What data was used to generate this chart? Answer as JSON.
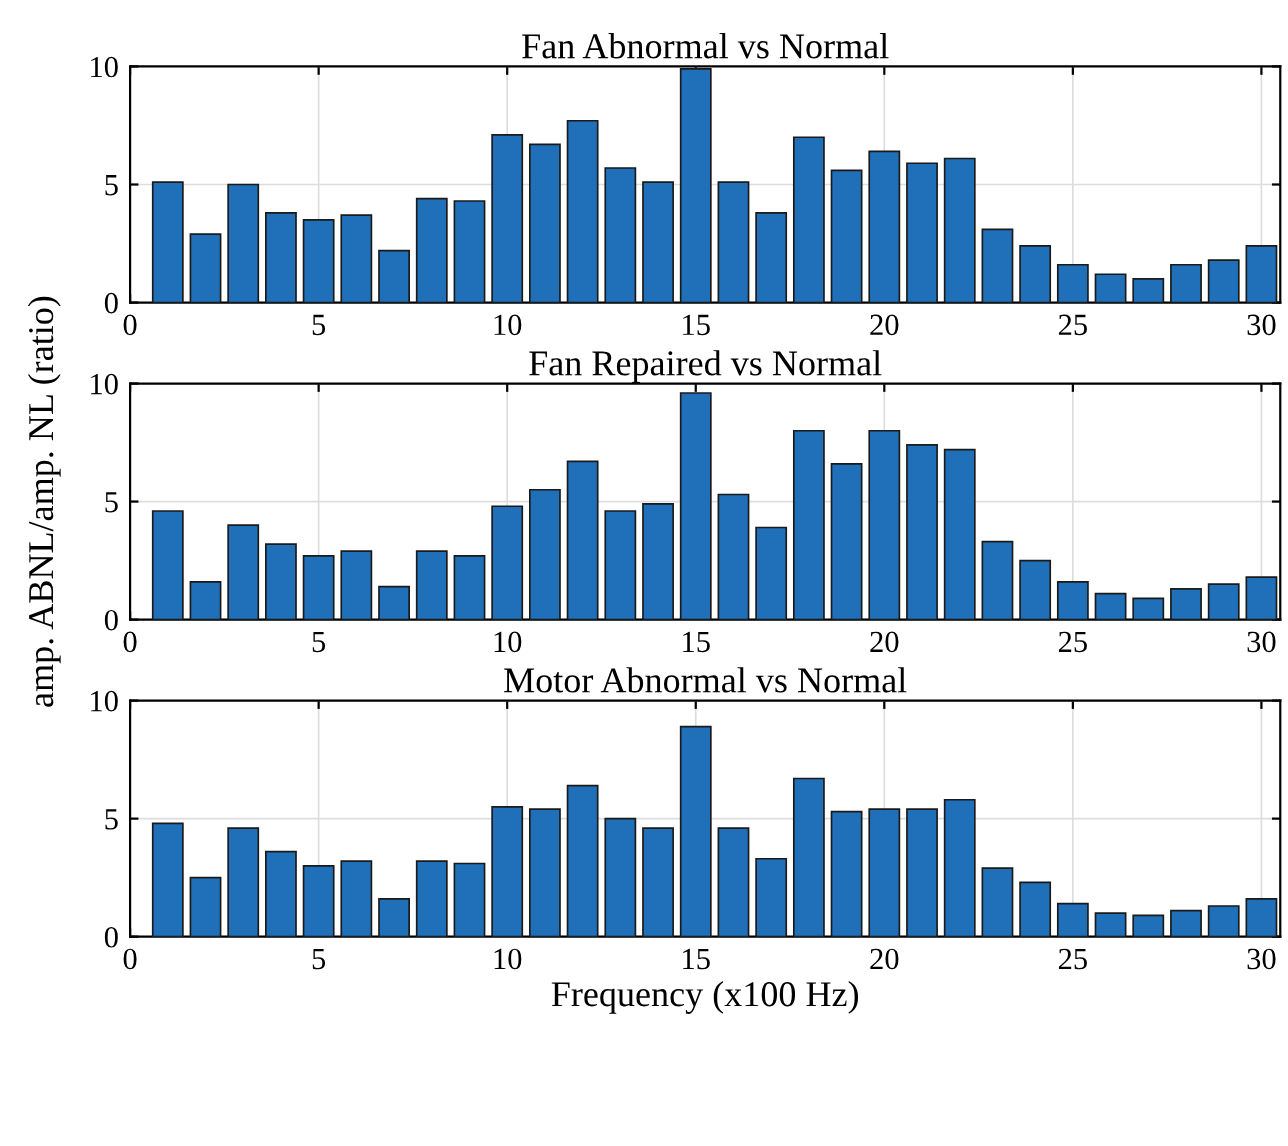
{
  "chart_data": [
    {
      "type": "bar",
      "title": "Fan Abnormal vs Normal",
      "x": [
        1,
        2,
        3,
        4,
        5,
        6,
        7,
        8,
        9,
        10,
        11,
        12,
        13,
        14,
        15,
        16,
        17,
        18,
        19,
        20,
        21,
        22,
        23,
        24,
        25,
        26,
        27,
        28,
        29,
        30
      ],
      "values": [
        5.1,
        2.9,
        5.0,
        3.8,
        3.5,
        3.7,
        2.2,
        4.4,
        4.3,
        7.1,
        6.7,
        7.7,
        5.7,
        5.1,
        9.9,
        5.1,
        3.8,
        7.0,
        5.6,
        6.4,
        5.9,
        6.1,
        3.1,
        2.4,
        1.6,
        1.2,
        1.0,
        1.6,
        1.8,
        2.4
      ],
      "color": "#1f6fb9",
      "xlim": [
        0,
        30.5
      ],
      "xticks": [
        0,
        5,
        10,
        15,
        20,
        25,
        30
      ],
      "ylim": [
        0,
        10
      ],
      "yticks": [
        0,
        5,
        10
      ],
      "grid": true
    },
    {
      "type": "bar",
      "title": "Fan Repaired vs Normal",
      "ylabel": "amp. ABNL/amp. NL (ratio)",
      "x": [
        1,
        2,
        3,
        4,
        5,
        6,
        7,
        8,
        9,
        10,
        11,
        12,
        13,
        14,
        15,
        16,
        17,
        18,
        19,
        20,
        21,
        22,
        23,
        24,
        25,
        26,
        27,
        28,
        29,
        30
      ],
      "values": [
        4.6,
        1.6,
        4.0,
        3.2,
        2.7,
        2.9,
        1.4,
        2.9,
        2.7,
        4.8,
        5.5,
        6.7,
        4.6,
        4.9,
        9.6,
        5.3,
        3.9,
        8.0,
        6.6,
        8.0,
        7.4,
        7.2,
        3.3,
        2.5,
        1.6,
        1.1,
        0.9,
        1.3,
        1.5,
        1.8
      ],
      "color": "#1f6fb9",
      "xlim": [
        0,
        30.5
      ],
      "xticks": [
        0,
        5,
        10,
        15,
        20,
        25,
        30
      ],
      "ylim": [
        0,
        10
      ],
      "yticks": [
        0,
        5,
        10
      ],
      "grid": true
    },
    {
      "type": "bar",
      "title": "Motor Abnormal vs Normal",
      "xlabel": "Frequency (x100 Hz)",
      "x": [
        1,
        2,
        3,
        4,
        5,
        6,
        7,
        8,
        9,
        10,
        11,
        12,
        13,
        14,
        15,
        16,
        17,
        18,
        19,
        20,
        21,
        22,
        23,
        24,
        25,
        26,
        27,
        28,
        29,
        30
      ],
      "values": [
        4.8,
        2.5,
        4.6,
        3.6,
        3.0,
        3.2,
        1.6,
        3.2,
        3.1,
        5.5,
        5.4,
        6.4,
        5.0,
        4.6,
        8.9,
        4.6,
        3.3,
        6.7,
        5.3,
        5.4,
        5.4,
        5.8,
        2.9,
        2.3,
        1.4,
        1.0,
        0.9,
        1.1,
        1.3,
        1.6
      ],
      "color": "#1f6fb9",
      "xlim": [
        0,
        30.5
      ],
      "xticks": [
        0,
        5,
        10,
        15,
        20,
        25,
        30
      ],
      "ylim": [
        0,
        10
      ],
      "yticks": [
        0,
        5,
        10
      ],
      "grid": true
    }
  ]
}
